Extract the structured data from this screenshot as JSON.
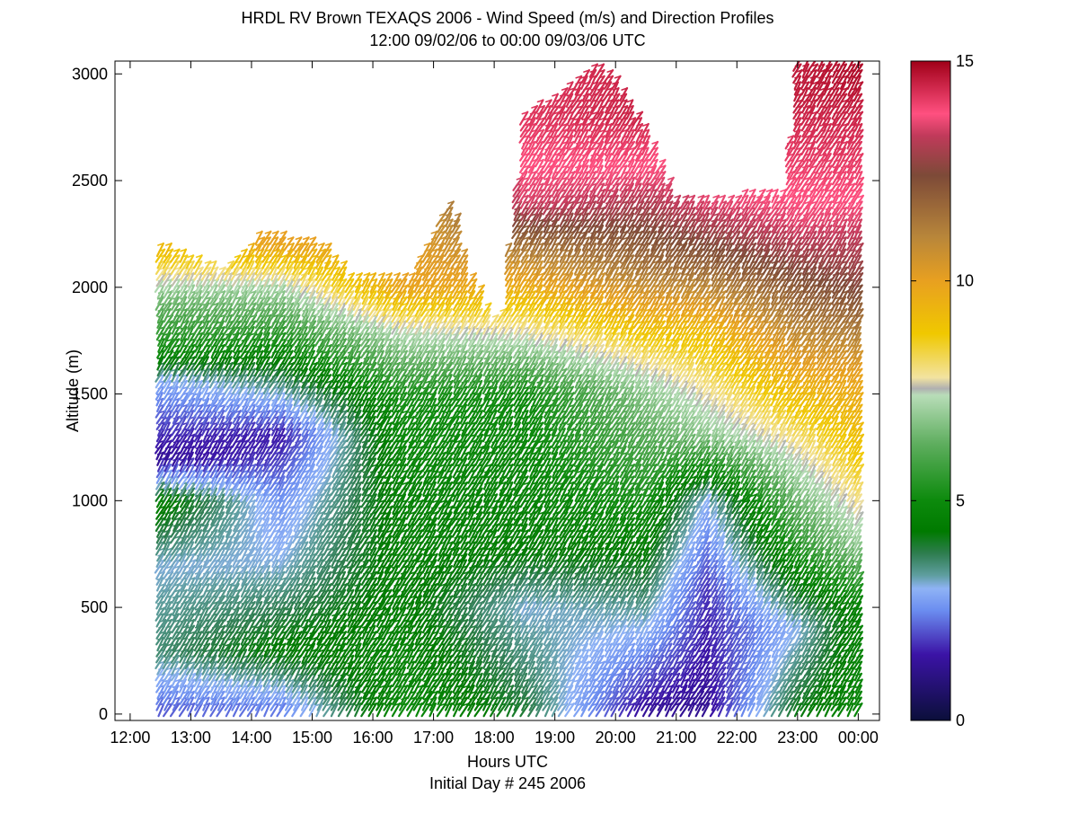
{
  "chart_data": {
    "type": "barb-profile",
    "title": "HRDL RV Brown TEXAQS 2006 - Wind Speed (m/s) and Direction Profiles",
    "subtitle": "12:00 09/02/06 to 00:00 09/03/06  UTC",
    "xlabel": "Hours UTC",
    "xlabel2": "Initial Day # 245  2006",
    "ylabel": "Altitude (m)",
    "x_range_hours": [
      11.75,
      24.35
    ],
    "ylim": [
      -30,
      3060
    ],
    "x_ticks": [
      {
        "value": 12,
        "label": "12:00"
      },
      {
        "value": 13,
        "label": "13:00"
      },
      {
        "value": 14,
        "label": "14:00"
      },
      {
        "value": 15,
        "label": "15:00"
      },
      {
        "value": 16,
        "label": "16:00"
      },
      {
        "value": 17,
        "label": "17:00"
      },
      {
        "value": 18,
        "label": "18:00"
      },
      {
        "value": 19,
        "label": "19:00"
      },
      {
        "value": 20,
        "label": "20:00"
      },
      {
        "value": 21,
        "label": "21:00"
      },
      {
        "value": 22,
        "label": "22:00"
      },
      {
        "value": 23,
        "label": "23:00"
      },
      {
        "value": 24,
        "label": "00:00"
      }
    ],
    "y_ticks": [
      0,
      500,
      1000,
      1500,
      2000,
      2500,
      3000
    ],
    "colorbar": {
      "range": [
        0,
        15
      ],
      "ticks": [
        0,
        5,
        10,
        15
      ],
      "stops": [
        {
          "v": 0,
          "color": "#0b0f3a"
        },
        {
          "v": 1.5,
          "color": "#3b13a6"
        },
        {
          "v": 2.5,
          "color": "#6b8df0"
        },
        {
          "v": 3.0,
          "color": "#8fb3f5"
        },
        {
          "v": 3.3,
          "color": "#5f9ea0"
        },
        {
          "v": 3.8,
          "color": "#2e7d4f"
        },
        {
          "v": 4.3,
          "color": "#007a00"
        },
        {
          "v": 5.0,
          "color": "#0c8a0c"
        },
        {
          "v": 6.3,
          "color": "#5fae5f"
        },
        {
          "v": 7.4,
          "color": "#b8ddb8"
        },
        {
          "v": 7.55,
          "color": "#b0b0b0"
        },
        {
          "v": 7.8,
          "color": "#f2e3a0"
        },
        {
          "v": 8.8,
          "color": "#f0c800"
        },
        {
          "v": 10.0,
          "color": "#e8a020"
        },
        {
          "v": 11.0,
          "color": "#b8863a"
        },
        {
          "v": 12.4,
          "color": "#7d4a38"
        },
        {
          "v": 13.3,
          "color": "#c03a5a"
        },
        {
          "v": 13.8,
          "color": "#ff5080"
        },
        {
          "v": 15.0,
          "color": "#a00018"
        }
      ]
    },
    "profile_times_hours": [
      12.5,
      12.62,
      12.75,
      12.88,
      13.0,
      13.13,
      13.25,
      13.38,
      13.5,
      13.63,
      13.75,
      13.88,
      14.0,
      14.13,
      14.25,
      14.38,
      14.5,
      14.63,
      14.75,
      14.88,
      15.0,
      15.13,
      15.25,
      15.38,
      15.5,
      15.63,
      15.75,
      15.88,
      16.0,
      16.13,
      16.25,
      16.38,
      16.5,
      16.63,
      16.75,
      16.88,
      17.0,
      17.13,
      17.25,
      17.38,
      17.5,
      17.63,
      17.75,
      17.88,
      18.0,
      18.13,
      18.25,
      18.38,
      18.5,
      18.63,
      18.75,
      18.88,
      19.0,
      19.13,
      19.25,
      19.38,
      19.5,
      19.63,
      19.75,
      19.88,
      20.0,
      20.13,
      20.25,
      20.38,
      20.5,
      20.63,
      20.75,
      20.88,
      21.0,
      21.13,
      21.25,
      21.38,
      21.5,
      21.63,
      21.75,
      21.88,
      22.0,
      22.13,
      22.25,
      22.38,
      22.5,
      22.63,
      22.75,
      22.88,
      23.0,
      23.13,
      23.25,
      23.38,
      23.5,
      23.63,
      23.75,
      23.88,
      24.0
    ],
    "top_altitude_m": [
      {
        "t": 12.5,
        "alt": 2200
      },
      {
        "t": 13.5,
        "alt": 2080
      },
      {
        "t": 14.2,
        "alt": 2250
      },
      {
        "t": 15.2,
        "alt": 2200
      },
      {
        "t": 15.6,
        "alt": 2060
      },
      {
        "t": 16.6,
        "alt": 2040
      },
      {
        "t": 17.3,
        "alt": 2420
      },
      {
        "t": 17.6,
        "alt": 2050
      },
      {
        "t": 18.1,
        "alt": 1820
      },
      {
        "t": 18.5,
        "alt": 2800
      },
      {
        "t": 19.8,
        "alt": 3050
      },
      {
        "t": 20.5,
        "alt": 2750
      },
      {
        "t": 21.0,
        "alt": 2400
      },
      {
        "t": 22.8,
        "alt": 2450
      },
      {
        "t": 23.0,
        "alt": 3050
      },
      {
        "t": 24.0,
        "alt": 3050
      }
    ],
    "speed_structure": [
      {
        "t": 12.5,
        "levels": [
          {
            "alt": 0,
            "speed": 2.0
          },
          {
            "alt": 300,
            "speed": 3.6
          },
          {
            "alt": 700,
            "speed": 3.1
          },
          {
            "alt": 1000,
            "speed": 4.6
          },
          {
            "alt": 1200,
            "speed": 1.2
          },
          {
            "alt": 1550,
            "speed": 2.8
          },
          {
            "alt": 1700,
            "speed": 5.0
          },
          {
            "alt": 1950,
            "speed": 6.6
          },
          {
            "alt": 2200,
            "speed": 9.5
          }
        ]
      },
      {
        "t": 14.5,
        "levels": [
          {
            "alt": 0,
            "speed": 2.2
          },
          {
            "alt": 300,
            "speed": 4.4
          },
          {
            "alt": 700,
            "speed": 3.1
          },
          {
            "alt": 1000,
            "speed": 2.6
          },
          {
            "alt": 1300,
            "speed": 1.5
          },
          {
            "alt": 1700,
            "speed": 4.8
          },
          {
            "alt": 2000,
            "speed": 7.2
          },
          {
            "alt": 2200,
            "speed": 10.0
          }
        ]
      },
      {
        "t": 16.5,
        "levels": [
          {
            "alt": 0,
            "speed": 5.0
          },
          {
            "alt": 500,
            "speed": 4.5
          },
          {
            "alt": 1000,
            "speed": 4.6
          },
          {
            "alt": 1500,
            "speed": 5.2
          },
          {
            "alt": 1800,
            "speed": 7.5
          },
          {
            "alt": 2000,
            "speed": 10.0
          }
        ]
      },
      {
        "t": 18.5,
        "levels": [
          {
            "alt": 0,
            "speed": 4.0
          },
          {
            "alt": 500,
            "speed": 3.1
          },
          {
            "alt": 800,
            "speed": 4.5
          },
          {
            "alt": 1500,
            "speed": 5.0
          },
          {
            "alt": 1800,
            "speed": 7.8
          },
          {
            "alt": 2100,
            "speed": 10.5
          },
          {
            "alt": 2400,
            "speed": 13.5
          },
          {
            "alt": 2800,
            "speed": 14.2
          }
        ]
      },
      {
        "t": 20.5,
        "levels": [
          {
            "alt": 0,
            "speed": 1.2
          },
          {
            "alt": 400,
            "speed": 3.0
          },
          {
            "alt": 800,
            "speed": 4.5
          },
          {
            "alt": 1500,
            "speed": 6.8
          },
          {
            "alt": 1800,
            "speed": 9.0
          },
          {
            "alt": 2100,
            "speed": 11.5
          },
          {
            "alt": 2500,
            "speed": 13.6
          },
          {
            "alt": 2800,
            "speed": 14.5
          }
        ]
      },
      {
        "t": 21.5,
        "levels": [
          {
            "alt": 0,
            "speed": 1.2
          },
          {
            "alt": 600,
            "speed": 1.8
          },
          {
            "alt": 1000,
            "speed": 3.0
          },
          {
            "alt": 1300,
            "speed": 6.8
          },
          {
            "alt": 1800,
            "speed": 9.2
          },
          {
            "alt": 2100,
            "speed": 11.8
          },
          {
            "alt": 2400,
            "speed": 13.6
          }
        ]
      },
      {
        "t": 23.0,
        "levels": [
          {
            "alt": 0,
            "speed": 4.2
          },
          {
            "alt": 400,
            "speed": 3.0
          },
          {
            "alt": 800,
            "speed": 5.5
          },
          {
            "alt": 1200,
            "speed": 7.5
          },
          {
            "alt": 1500,
            "speed": 9.2
          },
          {
            "alt": 1900,
            "speed": 11.5
          },
          {
            "alt": 2300,
            "speed": 13.6
          },
          {
            "alt": 2900,
            "speed": 14.6
          }
        ]
      },
      {
        "t": 24.0,
        "levels": [
          {
            "alt": 0,
            "speed": 4.8
          },
          {
            "alt": 500,
            "speed": 4.6
          },
          {
            "alt": 800,
            "speed": 7.0
          },
          {
            "alt": 1200,
            "speed": 8.8
          },
          {
            "alt": 1600,
            "speed": 10.0
          },
          {
            "alt": 2000,
            "speed": 12.5
          },
          {
            "alt": 2400,
            "speed": 13.8
          },
          {
            "alt": 3000,
            "speed": 14.8
          }
        ]
      }
    ]
  }
}
